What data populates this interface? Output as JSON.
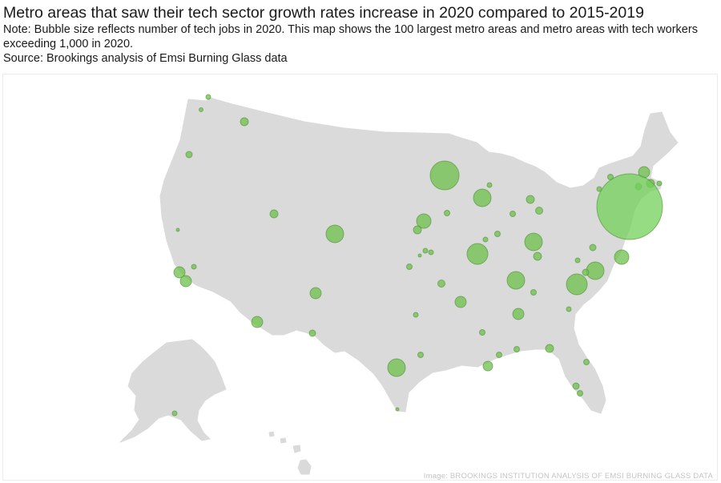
{
  "header": {
    "title": "Metro areas that saw their tech sector growth rates increase in 2020 compared to 2015-2019",
    "note": "Note: Bubble size reflects number of tech jobs in 2020. This map shows the 100 largest metro areas and metro areas with tech workers exceeding 1,000 in 2020.",
    "source": "Source: Brookings analysis of Emsi Burning Glass data"
  },
  "credit": "Image: BROOKINGS INSTITUTION ANALYSIS OF EMSI BURNING GLASS DATA",
  "colors": {
    "land": "#dadada",
    "bubble": "#6cc04a",
    "bubble_stroke": "#4a8f32"
  }
}
